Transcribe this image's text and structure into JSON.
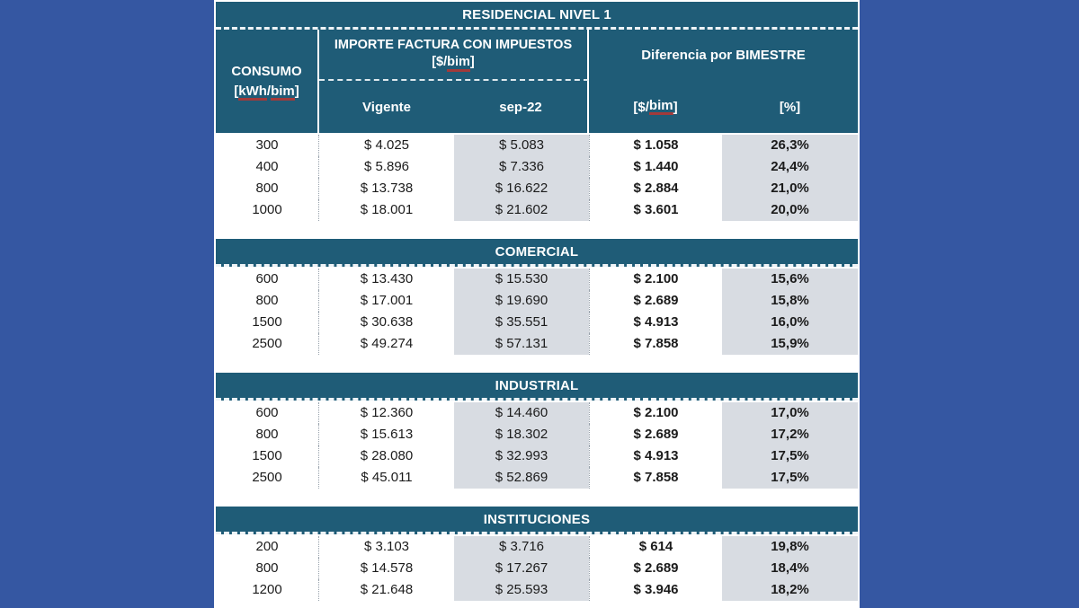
{
  "colors": {
    "page_background": "#3557A2",
    "header_teal": "#1F5C77",
    "column_shade": "#D8DCE2",
    "underline_red": "#A23A3A"
  },
  "header": {
    "consumo_title": "CONSUMO",
    "consumo_unit_open": "[",
    "consumo_unit_kwh": "kWh",
    "consumo_unit_slash": "/",
    "consumo_unit_bim": "bim",
    "consumo_unit_close": "]",
    "importe_title": "IMPORTE FACTURA CON IMPUESTOS",
    "importe_unit_open": "[$/",
    "importe_unit_bim": "bim",
    "importe_unit_close": "]",
    "diferencia_title": "Diferencia por BIMESTRE",
    "col_vigente": "Vigente",
    "col_sep22": "sep-22",
    "col_dif_open": "[$/",
    "col_dif_bim": "bim",
    "col_dif_close": "]",
    "col_pct": "[%]"
  },
  "chart_data": {
    "type": "table",
    "column_groups": [
      "CONSUMO [kWh/bim]",
      "IMPORTE FACTURA CON IMPUESTOS [$/bim]",
      "Diferencia por BIMESTRE"
    ],
    "columns": [
      "CONSUMO [kWh/bim]",
      "Vigente",
      "sep-22",
      "[$/bim]",
      "[%]"
    ],
    "sections": [
      {
        "title": "RESIDENCIAL NIVEL 1",
        "rows": [
          [
            "300",
            "$ 4.025",
            "$ 5.083",
            "$ 1.058",
            "26,3%"
          ],
          [
            "400",
            "$ 5.896",
            "$ 7.336",
            "$ 1.440",
            "24,4%"
          ],
          [
            "800",
            "$ 13.738",
            "$ 16.622",
            "$ 2.884",
            "21,0%"
          ],
          [
            "1000",
            "$ 18.001",
            "$ 21.602",
            "$ 3.601",
            "20,0%"
          ]
        ]
      },
      {
        "title": "COMERCIAL",
        "rows": [
          [
            "600",
            "$ 13.430",
            "$ 15.530",
            "$ 2.100",
            "15,6%"
          ],
          [
            "800",
            "$ 17.001",
            "$ 19.690",
            "$ 2.689",
            "15,8%"
          ],
          [
            "1500",
            "$ 30.638",
            "$ 35.551",
            "$ 4.913",
            "16,0%"
          ],
          [
            "2500",
            "$ 49.274",
            "$ 57.131",
            "$ 7.858",
            "15,9%"
          ]
        ]
      },
      {
        "title": "INDUSTRIAL",
        "rows": [
          [
            "600",
            "$ 12.360",
            "$ 14.460",
            "$ 2.100",
            "17,0%"
          ],
          [
            "800",
            "$ 15.613",
            "$ 18.302",
            "$ 2.689",
            "17,2%"
          ],
          [
            "1500",
            "$ 28.080",
            "$ 32.993",
            "$ 4.913",
            "17,5%"
          ],
          [
            "2500",
            "$ 45.011",
            "$ 52.869",
            "$ 7.858",
            "17,5%"
          ]
        ]
      },
      {
        "title": "INSTITUCIONES",
        "rows": [
          [
            "200",
            "$ 3.103",
            "$ 3.716",
            "$ 614",
            "19,8%"
          ],
          [
            "800",
            "$ 14.578",
            "$ 17.267",
            "$ 2.689",
            "18,4%"
          ],
          [
            "1200",
            "$ 21.648",
            "$ 25.593",
            "$ 3.946",
            "18,2%"
          ]
        ]
      }
    ]
  }
}
